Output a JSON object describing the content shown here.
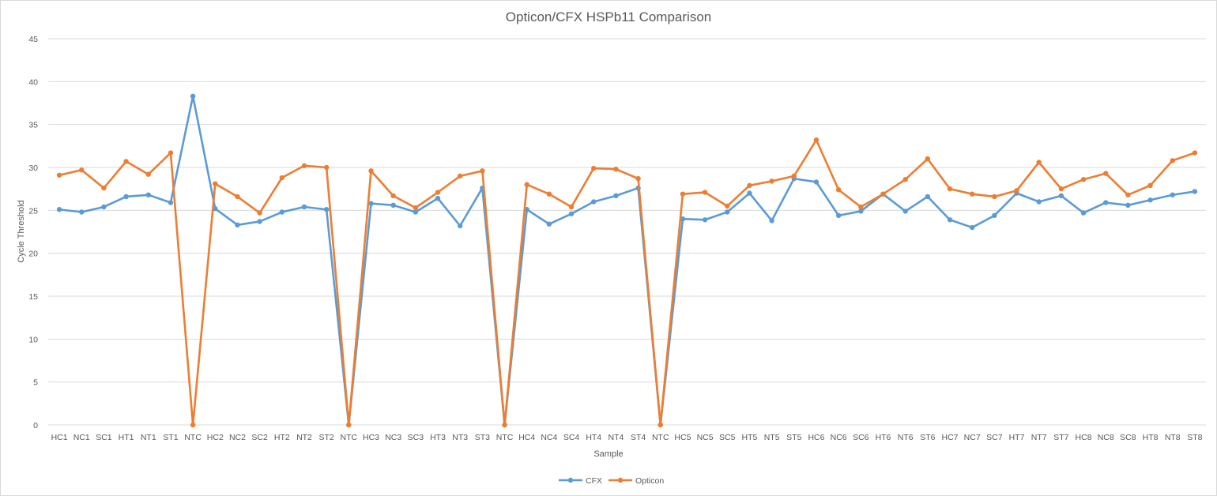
{
  "chart_data": {
    "type": "line",
    "title": "Opticon/CFX HSPb11 Comparison",
    "xlabel": "Sample",
    "ylabel": "Cycle Threshold",
    "ylim": [
      0,
      45
    ],
    "yticks": [
      0,
      5,
      10,
      15,
      20,
      25,
      30,
      35,
      40,
      45
    ],
    "grid": true,
    "legend_position": "bottom",
    "categories": [
      "HC1",
      "NC1",
      "SC1",
      "HT1",
      "NT1",
      "ST1",
      "NTC",
      "HC2",
      "NC2",
      "SC2",
      "HT2",
      "NT2",
      "ST2",
      "NTC",
      "HC3",
      "NC3",
      "SC3",
      "HT3",
      "NT3",
      "ST3",
      "NTC",
      "HC4",
      "NC4",
      "SC4",
      "HT4",
      "NT4",
      "ST4",
      "NTC",
      "HC5",
      "NC5",
      "SC5",
      "HT5",
      "NT5",
      "ST5",
      "HC6",
      "NC6",
      "SC6",
      "HT6",
      "NT6",
      "ST6",
      "HC7",
      "NC7",
      "SC7",
      "HT7",
      "NT7",
      "ST7",
      "HC8",
      "NC8",
      "SC8",
      "HT8",
      "NT8",
      "ST8"
    ],
    "series": [
      {
        "name": "CFX",
        "color": "#5b9bd5",
        "values": [
          25.1,
          24.8,
          25.4,
          26.6,
          26.8,
          25.9,
          38.3,
          25.2,
          23.3,
          23.7,
          24.8,
          25.4,
          25.1,
          0,
          25.8,
          25.6,
          24.8,
          26.4,
          23.2,
          27.6,
          0,
          25.1,
          23.4,
          24.6,
          26.0,
          26.7,
          27.6,
          0,
          24.0,
          23.9,
          24.8,
          27.0,
          23.8,
          28.7,
          28.3,
          24.4,
          24.9,
          26.9,
          24.9,
          26.6,
          23.9,
          23.0,
          24.4,
          27.0,
          26.0,
          26.7,
          24.7,
          25.9,
          25.6,
          26.2,
          26.8,
          27.2
        ]
      },
      {
        "name": "Opticon",
        "color": "#ed7d31",
        "values": [
          29.1,
          29.7,
          27.6,
          30.7,
          29.2,
          31.7,
          0,
          28.1,
          26.6,
          24.7,
          28.8,
          30.2,
          30.0,
          0,
          29.6,
          26.7,
          25.3,
          27.1,
          29.0,
          29.6,
          0,
          28.0,
          26.9,
          25.4,
          29.9,
          29.8,
          28.7,
          0,
          26.9,
          27.1,
          25.5,
          27.9,
          28.4,
          29.0,
          33.2,
          27.4,
          25.4,
          26.9,
          28.6,
          31.0,
          27.5,
          26.9,
          26.6,
          27.3,
          30.6,
          27.5,
          28.6,
          29.3,
          26.8,
          27.9,
          30.8,
          31.7
        ]
      }
    ]
  }
}
